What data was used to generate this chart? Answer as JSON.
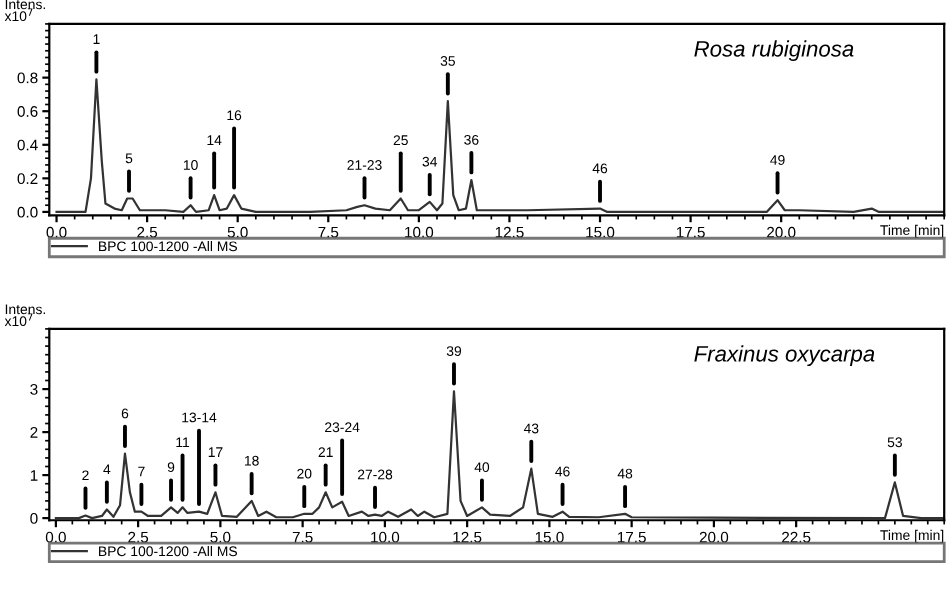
{
  "chart_data": [
    {
      "type": "line",
      "title": "Rosa rubiginosa",
      "ylabel": "Intens. x10$^{7}$",
      "xlabel": "Time [min]",
      "xlim": [
        -0.2,
        24.5
      ],
      "xticks": [
        {
          "value": 0,
          "label": "0.0"
        },
        2.5,
        {
          "value": 5,
          "label": "5.0"
        },
        7.5,
        {
          "value": 10,
          "label": "10.0"
        },
        12.5,
        {
          "value": 15,
          "label": "15.0"
        },
        17.5,
        {
          "value": 20,
          "label": "20.0"
        }
      ],
      "ylim": [
        -0.02,
        1.12
      ],
      "yticks": [
        {
          "value": 0,
          "label": "0.0"
        },
        0.2,
        0.4,
        0.6,
        0.8
      ],
      "legend": "bottom",
      "grid": false,
      "marker": "none",
      "line_style": "solid",
      "series": [
        {
          "name": "BPC 100-1200 -All MS",
          "color": "#333333",
          "x": [
            0,
            0.8,
            0.95,
            1.1,
            1.25,
            1.35,
            1.6,
            1.8,
            1.95,
            2.1,
            2.3,
            3.0,
            3.5,
            3.7,
            3.85,
            4.2,
            4.35,
            4.5,
            4.7,
            4.9,
            5.1,
            5.5,
            7.0,
            8.0,
            8.3,
            8.5,
            8.8,
            9.2,
            9.5,
            9.7,
            10.0,
            10.3,
            10.5,
            10.65,
            10.8,
            10.95,
            11.1,
            11.3,
            11.45,
            11.6,
            12.0,
            13.0,
            15.0,
            15.2,
            17.0,
            19.6,
            19.9,
            20.1,
            20.5,
            22.0,
            22.5,
            22.7,
            24.5
          ],
          "values": [
            0,
            0,
            0.2,
            0.79,
            0.3,
            0.05,
            0.02,
            0.01,
            0.08,
            0.08,
            0.01,
            0.01,
            0,
            0.04,
            0,
            0.01,
            0.1,
            0.01,
            0.02,
            0.1,
            0.02,
            0,
            0,
            0.01,
            0.03,
            0.04,
            0.02,
            0.01,
            0.08,
            0.01,
            0.01,
            0.06,
            0.01,
            0.05,
            0.66,
            0.1,
            0.01,
            0.02,
            0.19,
            0.01,
            0.01,
            0.01,
            0.02,
            0,
            0,
            0,
            0.07,
            0.01,
            0.01,
            0,
            0.02,
            0,
            0
          ]
        }
      ],
      "annotations": [
        {
          "text": "1",
          "x": 1.1,
          "y": 0.79
        },
        {
          "text": "5",
          "x": 2.0,
          "y": 0.08
        },
        {
          "text": "10",
          "x": 3.7,
          "y": 0.04
        },
        {
          "text": "14",
          "x": 4.35,
          "y": 0.1
        },
        {
          "text": "16",
          "x": 4.9,
          "y": 0.1
        },
        {
          "text": "21-23",
          "x": 8.5,
          "y": 0.04
        },
        {
          "text": "25",
          "x": 9.5,
          "y": 0.08
        },
        {
          "text": "34",
          "x": 10.3,
          "y": 0.06
        },
        {
          "text": "35",
          "x": 10.8,
          "y": 0.66
        },
        {
          "text": "36",
          "x": 11.45,
          "y": 0.19
        },
        {
          "text": "46",
          "x": 15.0,
          "y": 0.02
        },
        {
          "text": "49",
          "x": 19.9,
          "y": 0.07
        }
      ]
    },
    {
      "type": "line",
      "title": "Fraxinus oxycarpa",
      "ylabel": "Intens. x10$^{7}$",
      "xlabel": "Time [min]",
      "xlim": [
        -0.2,
        27.0
      ],
      "xticks": [
        {
          "value": 0,
          "label": "0.0"
        },
        2.5,
        {
          "value": 5,
          "label": "5.0"
        },
        7.5,
        {
          "value": 10,
          "label": "10.0"
        },
        12.5,
        {
          "value": 15,
          "label": "15.0"
        },
        17.5,
        {
          "value": 20,
          "label": "20.0"
        },
        22.5
      ],
      "ylim": [
        -0.05,
        4.4
      ],
      "yticks": [
        0,
        1,
        2,
        3
      ],
      "legend": "bottom",
      "grid": false,
      "marker": "none",
      "line_style": "solid",
      "series": [
        {
          "name": "BPC 100-1200 -All MS",
          "color": "#333333",
          "x": [
            0,
            0.7,
            0.9,
            1.1,
            1.4,
            1.55,
            1.75,
            1.95,
            2.1,
            2.25,
            2.4,
            2.6,
            2.8,
            3.2,
            3.5,
            3.7,
            3.85,
            4.0,
            4.35,
            4.6,
            4.85,
            5.05,
            5.5,
            5.95,
            6.15,
            6.4,
            6.7,
            7.2,
            7.55,
            7.8,
            8.0,
            8.2,
            8.4,
            8.7,
            8.9,
            9.3,
            9.5,
            9.7,
            9.9,
            10.1,
            10.4,
            10.8,
            11.0,
            11.2,
            11.5,
            11.9,
            12.1,
            12.3,
            12.5,
            12.95,
            13.2,
            13.8,
            14.2,
            14.45,
            14.65,
            15.1,
            15.4,
            15.6,
            16.5,
            17.3,
            17.5,
            20.0,
            25.2,
            25.5,
            25.75,
            26.3,
            27.0
          ],
          "values": [
            0,
            0,
            0.06,
            0,
            0.05,
            0.2,
            0.03,
            0.3,
            1.5,
            0.6,
            0.15,
            0.15,
            0.05,
            0.05,
            0.25,
            0.12,
            0.25,
            0.12,
            0.15,
            0.1,
            0.6,
            0.05,
            0.03,
            0.4,
            0.05,
            0.15,
            0.02,
            0.02,
            0.1,
            0.1,
            0.25,
            0.6,
            0.25,
            0.38,
            0.05,
            0.15,
            0.05,
            0.08,
            0.05,
            0.15,
            0.03,
            0.2,
            0.05,
            0.15,
            0.02,
            0.1,
            2.95,
            0.4,
            0.05,
            0.25,
            0.08,
            0.05,
            0.25,
            1.15,
            0.1,
            0.03,
            0.15,
            0.03,
            0.02,
            0.1,
            0.02,
            0.01,
            0,
            0.83,
            0.05,
            0,
            0
          ]
        }
      ],
      "annotations": [
        {
          "text": "2",
          "x": 0.9,
          "y": 0.06
        },
        {
          "text": "4",
          "x": 1.55,
          "y": 0.2
        },
        {
          "text": "6",
          "x": 2.1,
          "y": 1.5
        },
        {
          "text": "7",
          "x": 2.6,
          "y": 0.15
        },
        {
          "text": "9",
          "x": 3.5,
          "y": 0.25
        },
        {
          "text": "11",
          "x": 3.85,
          "y": 0.25
        },
        {
          "text": "13-14",
          "x": 4.35,
          "y": 0.15
        },
        {
          "text": "17",
          "x": 4.85,
          "y": 0.6
        },
        {
          "text": "18",
          "x": 5.95,
          "y": 0.4
        },
        {
          "text": "20",
          "x": 7.55,
          "y": 0.1
        },
        {
          "text": "21",
          "x": 8.2,
          "y": 0.6
        },
        {
          "text": "23-24",
          "x": 8.7,
          "y": 0.38
        },
        {
          "text": "27-28",
          "x": 9.7,
          "y": 0.08
        },
        {
          "text": "39",
          "x": 12.1,
          "y": 2.95
        },
        {
          "text": "40",
          "x": 12.95,
          "y": 0.25
        },
        {
          "text": "43",
          "x": 14.45,
          "y": 1.15
        },
        {
          "text": "46",
          "x": 15.4,
          "y": 0.15
        },
        {
          "text": "48",
          "x": 17.3,
          "y": 0.1
        },
        {
          "text": "53",
          "x": 25.5,
          "y": 0.83
        }
      ]
    }
  ]
}
